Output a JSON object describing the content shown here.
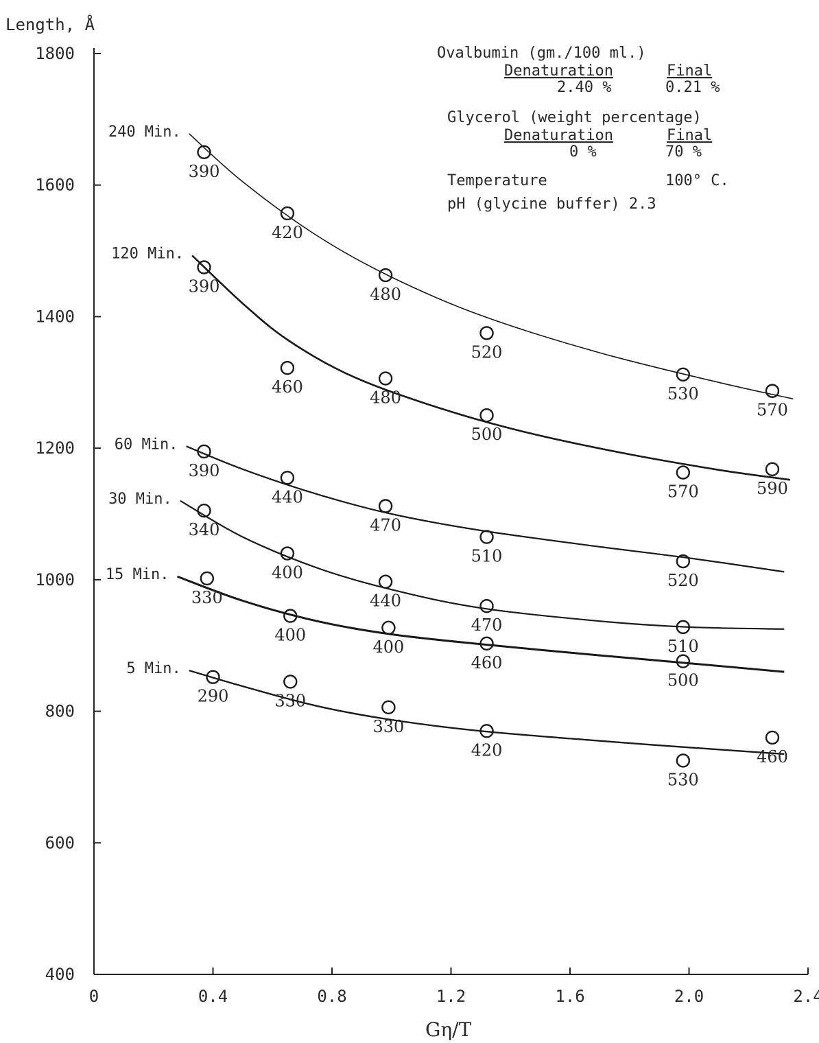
{
  "chart_data": {
    "type": "scatter",
    "title": "",
    "xlabel": "Gη/T",
    "ylabel": "Length, Å",
    "xlim": [
      0,
      2.4
    ],
    "ylim": [
      400,
      1800
    ],
    "x_ticks": [
      "0",
      "0.4",
      "0.8",
      "1.2",
      "1.6",
      "2.0",
      "2.4"
    ],
    "y_ticks": [
      "400",
      "600",
      "800",
      "1000",
      "1200",
      "1400",
      "1600",
      "1800"
    ],
    "grid": false,
    "legend_text": {
      "line1": "Ovalbumin (gm./100 ml.)",
      "line2_left": "Denaturation",
      "line2_right": "Final",
      "line3_left": "2.40 %",
      "line3_right": "0.21 %",
      "line4": "Glycerol  (weight percentage)",
      "line5_left": "Denaturation",
      "line5_right": "Final",
      "line6_left": "0 %",
      "line6_right": "70 %",
      "line7_left": "Temperature",
      "line7_right": "100° C.",
      "line8": "pH  (glycine buffer) 2.3"
    },
    "series": [
      {
        "name": "240 Min.",
        "points": [
          {
            "x": 0.37,
            "y": 1650,
            "label": "390"
          },
          {
            "x": 0.65,
            "y": 1557,
            "label": "420"
          },
          {
            "x": 0.98,
            "y": 1463,
            "label": "480"
          },
          {
            "x": 1.32,
            "y": 1375,
            "label": "520"
          },
          {
            "x": 1.98,
            "y": 1312,
            "label": "530"
          },
          {
            "x": 2.28,
            "y": 1287,
            "label": "570"
          }
        ],
        "curve": [
          [
            0.32,
            1678
          ],
          [
            0.5,
            1605
          ],
          [
            0.75,
            1523
          ],
          [
            1.0,
            1460
          ],
          [
            1.3,
            1402
          ],
          [
            1.7,
            1345
          ],
          [
            2.1,
            1300
          ],
          [
            2.35,
            1275
          ]
        ]
      },
      {
        "name": "120 Min.",
        "points": [
          {
            "x": 0.37,
            "y": 1475,
            "label": "390"
          },
          {
            "x": 0.65,
            "y": 1322,
            "label": "460"
          },
          {
            "x": 0.98,
            "y": 1306,
            "label": "480"
          },
          {
            "x": 1.32,
            "y": 1250,
            "label": "500"
          },
          {
            "x": 1.98,
            "y": 1163,
            "label": "570"
          },
          {
            "x": 2.28,
            "y": 1168,
            "label": "590"
          }
        ],
        "curve": [
          [
            0.33,
            1493
          ],
          [
            0.5,
            1420
          ],
          [
            0.65,
            1365
          ],
          [
            0.85,
            1313
          ],
          [
            1.1,
            1270
          ],
          [
            1.4,
            1230
          ],
          [
            1.75,
            1195
          ],
          [
            2.1,
            1167
          ],
          [
            2.34,
            1152
          ]
        ]
      },
      {
        "name": "60 Min.",
        "points": [
          {
            "x": 0.37,
            "y": 1195,
            "label": "390"
          },
          {
            "x": 0.65,
            "y": 1155,
            "label": "440"
          },
          {
            "x": 0.98,
            "y": 1112,
            "label": "470"
          },
          {
            "x": 1.32,
            "y": 1065,
            "label": "510"
          },
          {
            "x": 1.98,
            "y": 1028,
            "label": "520"
          }
        ],
        "curve": [
          [
            0.31,
            1203
          ],
          [
            0.5,
            1168
          ],
          [
            0.75,
            1130
          ],
          [
            1.0,
            1100
          ],
          [
            1.3,
            1075
          ],
          [
            1.7,
            1050
          ],
          [
            2.0,
            1033
          ],
          [
            2.32,
            1012
          ]
        ]
      },
      {
        "name": "30 Min.",
        "points": [
          {
            "x": 0.37,
            "y": 1105,
            "label": "340"
          },
          {
            "x": 0.65,
            "y": 1040,
            "label": "400"
          },
          {
            "x": 0.98,
            "y": 997,
            "label": "440"
          },
          {
            "x": 1.32,
            "y": 960,
            "label": "470"
          },
          {
            "x": 1.98,
            "y": 928,
            "label": "510"
          }
        ],
        "curve": [
          [
            0.29,
            1120
          ],
          [
            0.5,
            1065
          ],
          [
            0.75,
            1018
          ],
          [
            1.0,
            985
          ],
          [
            1.3,
            957
          ],
          [
            1.7,
            937
          ],
          [
            2.0,
            928
          ],
          [
            2.32,
            925
          ]
        ]
      },
      {
        "name": "15 Min.",
        "points": [
          {
            "x": 0.38,
            "y": 1002,
            "label": "330"
          },
          {
            "x": 0.66,
            "y": 945,
            "label": "400"
          },
          {
            "x": 0.99,
            "y": 927,
            "label": "400"
          },
          {
            "x": 1.32,
            "y": 903,
            "label": "460"
          },
          {
            "x": 1.98,
            "y": 876,
            "label": "500"
          }
        ],
        "curve": [
          [
            0.28,
            1005
          ],
          [
            0.5,
            968
          ],
          [
            0.75,
            937
          ],
          [
            1.0,
            917
          ],
          [
            1.3,
            902
          ],
          [
            1.7,
            885
          ],
          [
            2.0,
            873
          ],
          [
            2.32,
            860
          ]
        ]
      },
      {
        "name": "5 Min.",
        "points": [
          {
            "x": 0.4,
            "y": 852,
            "label": "290"
          },
          {
            "x": 0.66,
            "y": 845,
            "label": "330"
          },
          {
            "x": 0.99,
            "y": 806,
            "label": "330"
          },
          {
            "x": 1.32,
            "y": 770,
            "label": "420"
          },
          {
            "x": 1.98,
            "y": 725,
            "label": "530"
          },
          {
            "x": 2.28,
            "y": 760,
            "label": "460"
          }
        ],
        "curve": [
          [
            0.32,
            862
          ],
          [
            0.5,
            838
          ],
          [
            0.75,
            808
          ],
          [
            1.0,
            787
          ],
          [
            1.3,
            770
          ],
          [
            1.7,
            755
          ],
          [
            2.0,
            745
          ],
          [
            2.32,
            735
          ]
        ]
      }
    ]
  }
}
